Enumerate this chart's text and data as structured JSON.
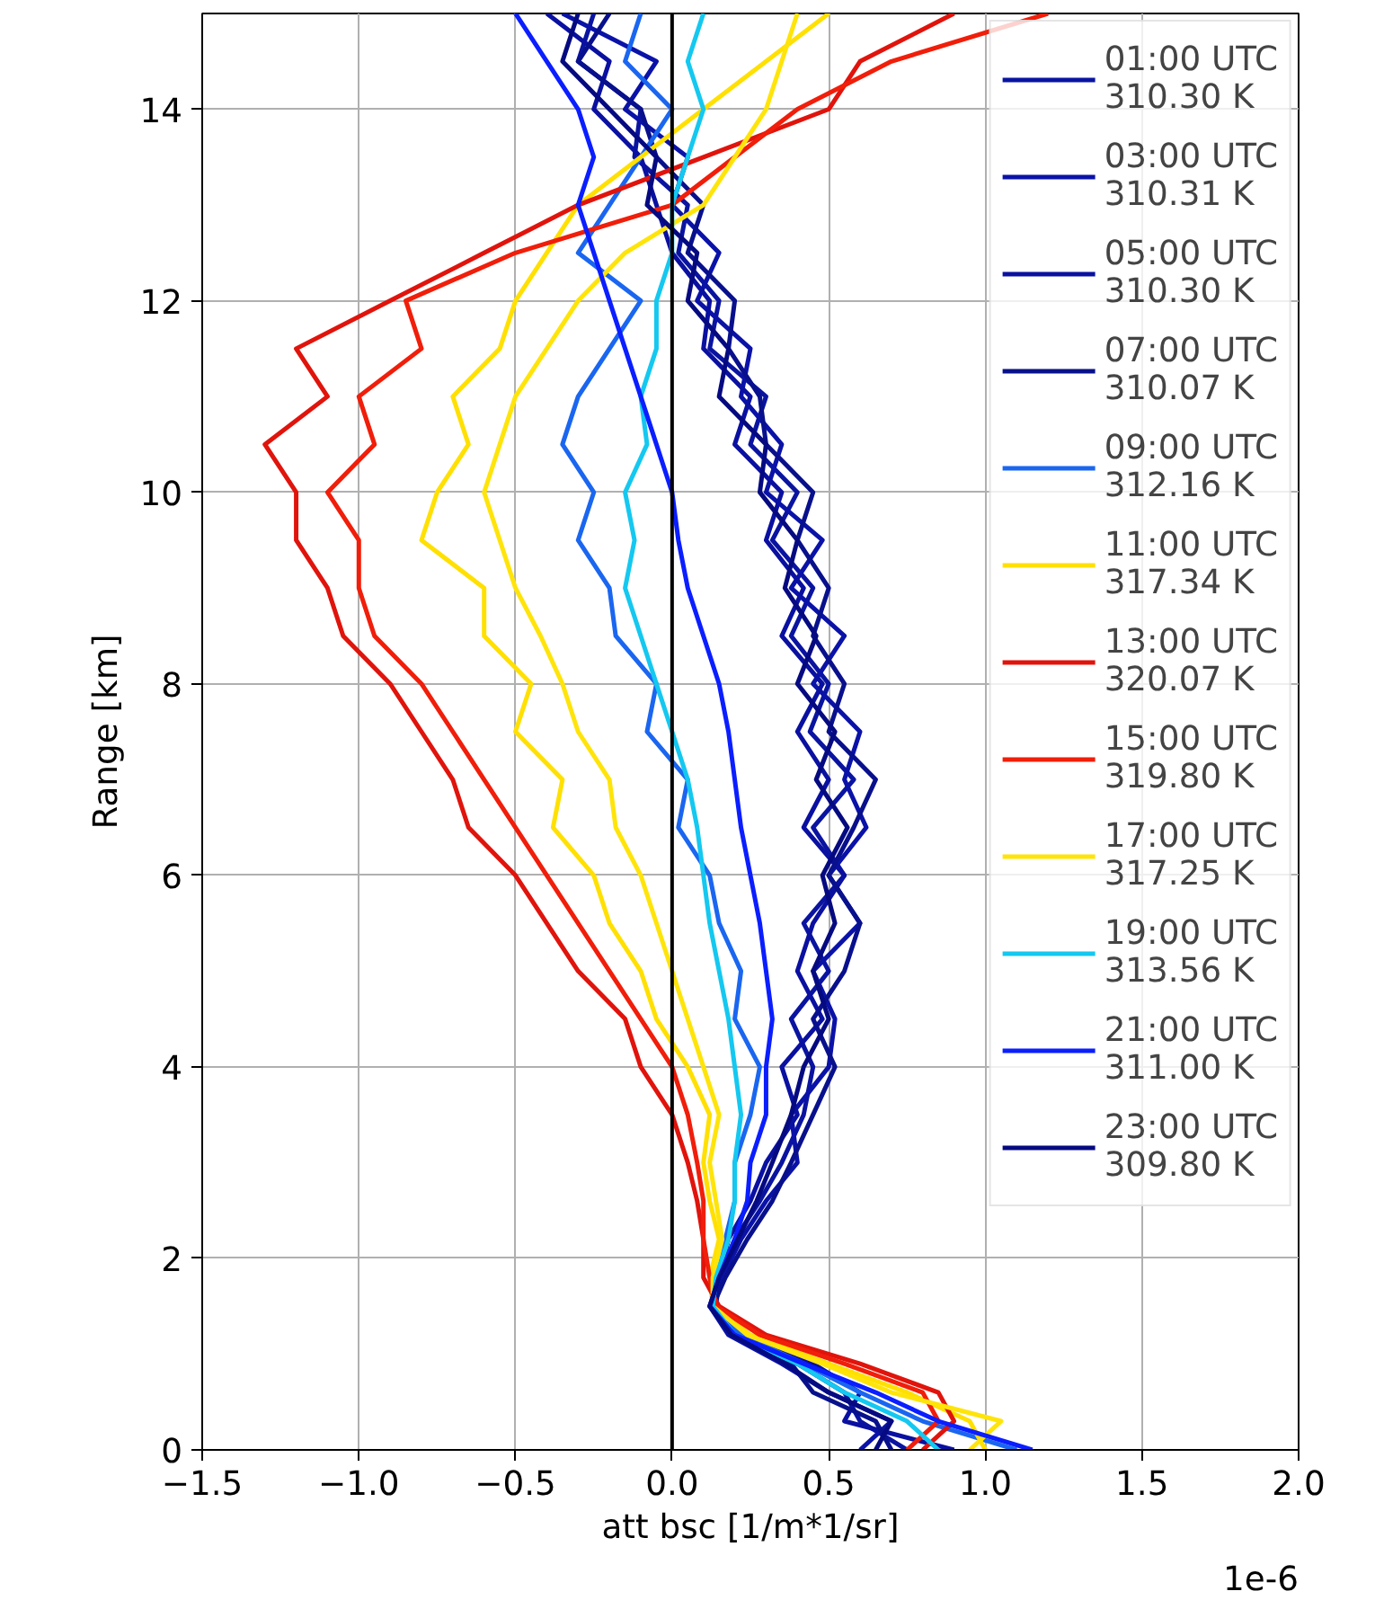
{
  "chart_data": {
    "type": "line",
    "orientation": "horizontal",
    "xlabel": "att bsc [1/m*1/sr]",
    "ylabel": "Range [km]",
    "annotations": [
      "1e-6"
    ],
    "x": [
      0,
      0.3,
      0.6,
      0.9,
      1.2,
      1.5,
      1.8,
      2.2,
      2.6,
      3,
      3.5,
      4,
      4.5,
      5,
      5.5,
      6,
      6.5,
      7,
      7.5,
      8,
      8.5,
      9,
      9.5,
      10,
      10.5,
      11,
      11.5,
      12,
      12.5,
      13,
      13.5,
      14,
      14.5,
      15
    ],
    "xlim": [
      -1.5,
      2.0
    ],
    "xticks": [
      {
        "value": -1.5,
        "label": "−1.5"
      },
      {
        "value": -1.0,
        "label": "−1.0"
      },
      {
        "value": -0.5,
        "label": "−0.5"
      },
      {
        "value": 0.0,
        "label": "0.0"
      },
      {
        "value": 0.5,
        "label": "0.5"
      },
      {
        "value": 1.0,
        "label": "1.0"
      },
      {
        "value": 1.5,
        "label": "1.5"
      },
      {
        "value": 2.0,
        "label": "2.0"
      }
    ],
    "ylim": [
      0,
      15
    ],
    "yticks": [
      0,
      2,
      4,
      6,
      8,
      10,
      12,
      14
    ],
    "grid": true,
    "legend": "top right",
    "marker": "none",
    "line_style": "solid",
    "ref_lines": [
      {
        "axis": "x",
        "value": 0,
        "label": null,
        "color": "#000000"
      }
    ],
    "series": [
      {
        "name": "01:00 UTC\n310.30 K",
        "color": "#0a14a0",
        "values": [
          0.75,
          0.6,
          0.55,
          0.4,
          0.2,
          0.13,
          0.15,
          0.2,
          0.28,
          0.35,
          0.42,
          0.45,
          0.38,
          0.5,
          0.42,
          0.55,
          0.45,
          0.58,
          0.44,
          0.5,
          0.38,
          0.45,
          0.32,
          0.4,
          0.25,
          0.3,
          0.12,
          0.15,
          0.02,
          0.05,
          -0.12,
          -0.1,
          -0.3,
          -0.25
        ]
      },
      {
        "name": "03:00 UTC\n310.31 K",
        "color": "#0a12a8",
        "values": [
          0.6,
          0.7,
          0.5,
          0.35,
          0.18,
          0.12,
          0.16,
          0.22,
          0.3,
          0.4,
          0.38,
          0.5,
          0.52,
          0.45,
          0.6,
          0.5,
          0.62,
          0.55,
          0.6,
          0.45,
          0.55,
          0.38,
          0.48,
          0.3,
          0.35,
          0.22,
          0.25,
          0.08,
          0.15,
          0.0,
          0.05,
          -0.15,
          -0.05,
          -0.35
        ]
      },
      {
        "name": "05:00 UTC\n310.30 K",
        "color": "#0a10a0",
        "values": [
          0.9,
          0.55,
          0.6,
          0.45,
          0.22,
          0.14,
          0.15,
          0.18,
          0.25,
          0.3,
          0.4,
          0.35,
          0.48,
          0.4,
          0.45,
          0.55,
          0.42,
          0.5,
          0.4,
          0.48,
          0.35,
          0.42,
          0.3,
          0.35,
          0.2,
          0.25,
          0.1,
          0.12,
          0.0,
          -0.05,
          -0.1,
          -0.25,
          -0.2,
          -0.4
        ]
      },
      {
        "name": "07:00 UTC\n310.07 K",
        "color": "#08108c",
        "values": [
          0.7,
          0.65,
          0.45,
          0.38,
          0.2,
          0.13,
          0.17,
          0.24,
          0.32,
          0.38,
          0.45,
          0.52,
          0.45,
          0.55,
          0.6,
          0.5,
          0.58,
          0.65,
          0.5,
          0.55,
          0.45,
          0.5,
          0.4,
          0.45,
          0.3,
          0.28,
          0.18,
          0.2,
          0.05,
          0.1,
          -0.05,
          -0.1,
          -0.3,
          -0.2
        ]
      },
      {
        "name": "09:00 UTC\n312.16 K",
        "color": "#1a66f0",
        "values": [
          1.1,
          0.8,
          0.6,
          0.42,
          0.22,
          0.13,
          0.14,
          0.17,
          0.2,
          0.2,
          0.25,
          0.28,
          0.2,
          0.22,
          0.15,
          0.12,
          0.02,
          0.05,
          -0.08,
          -0.05,
          -0.18,
          -0.2,
          -0.3,
          -0.25,
          -0.35,
          -0.3,
          -0.2,
          -0.1,
          -0.3,
          -0.2,
          -0.1,
          0.0,
          -0.15,
          -0.1
        ]
      },
      {
        "name": "11:00 UTC\n317.34 K",
        "color": "#ffe000",
        "values": [
          1.0,
          0.95,
          0.75,
          0.5,
          0.25,
          0.13,
          0.12,
          0.15,
          0.12,
          0.1,
          0.12,
          0.05,
          -0.05,
          -0.1,
          -0.2,
          -0.25,
          -0.38,
          -0.35,
          -0.5,
          -0.45,
          -0.6,
          -0.6,
          -0.8,
          -0.75,
          -0.65,
          -0.7,
          -0.55,
          -0.5,
          -0.4,
          -0.3,
          -0.1,
          0.1,
          0.3,
          0.5
        ]
      },
      {
        "name": "13:00 UTC\n320.07 K",
        "color": "#e0140c",
        "values": [
          0.8,
          0.9,
          0.85,
          0.6,
          0.3,
          0.15,
          0.1,
          0.1,
          0.08,
          0.05,
          0.0,
          -0.1,
          -0.15,
          -0.3,
          -0.4,
          -0.5,
          -0.65,
          -0.7,
          -0.8,
          -0.9,
          -1.05,
          -1.1,
          -1.2,
          -1.2,
          -1.3,
          -1.1,
          -1.2,
          -0.9,
          -0.6,
          -0.3,
          0.1,
          0.5,
          0.6,
          0.9
        ]
      },
      {
        "name": "15:00 UTC\n319.80 K",
        "color": "#f01e0a",
        "values": [
          0.75,
          0.85,
          0.8,
          0.55,
          0.28,
          0.14,
          0.12,
          0.1,
          0.1,
          0.08,
          0.05,
          0.0,
          -0.1,
          -0.2,
          -0.3,
          -0.4,
          -0.5,
          -0.6,
          -0.7,
          -0.8,
          -0.95,
          -1.0,
          -1.0,
          -1.1,
          -0.95,
          -1.0,
          -0.8,
          -0.85,
          -0.5,
          0.0,
          0.2,
          0.4,
          0.7,
          1.2
        ]
      },
      {
        "name": "17:00 UTC\n317.25 K",
        "color": "#ffe40a",
        "values": [
          0.95,
          1.05,
          0.7,
          0.48,
          0.24,
          0.13,
          0.13,
          0.16,
          0.14,
          0.12,
          0.15,
          0.1,
          0.05,
          0.0,
          -0.05,
          -0.1,
          -0.18,
          -0.2,
          -0.3,
          -0.35,
          -0.42,
          -0.5,
          -0.55,
          -0.6,
          -0.55,
          -0.5,
          -0.4,
          -0.3,
          -0.15,
          0.1,
          0.2,
          0.3,
          0.35,
          0.4
        ]
      },
      {
        "name": "19:00 UTC\n313.56 K",
        "color": "#14c8f0",
        "values": [
          0.85,
          0.75,
          0.55,
          0.4,
          0.2,
          0.13,
          0.14,
          0.18,
          0.2,
          0.2,
          0.22,
          0.2,
          0.18,
          0.15,
          0.12,
          0.1,
          0.08,
          0.05,
          0.0,
          -0.05,
          -0.1,
          -0.15,
          -0.12,
          -0.15,
          -0.08,
          -0.1,
          -0.05,
          -0.05,
          0.0,
          0.0,
          0.05,
          0.1,
          0.05,
          0.1
        ]
      },
      {
        "name": "21:00 UTC\n311.00 K",
        "color": "#0a1eff",
        "values": [
          1.15,
          0.85,
          0.65,
          0.42,
          0.2,
          0.12,
          0.15,
          0.2,
          0.24,
          0.25,
          0.3,
          0.3,
          0.32,
          0.3,
          0.28,
          0.25,
          0.22,
          0.2,
          0.18,
          0.15,
          0.1,
          0.05,
          0.02,
          0.0,
          -0.05,
          -0.1,
          -0.15,
          -0.2,
          -0.25,
          -0.3,
          -0.25,
          -0.3,
          -0.4,
          -0.5
        ]
      },
      {
        "name": "23:00 UTC\n309.80 K",
        "color": "#060a80",
        "values": [
          0.65,
          0.7,
          0.5,
          0.36,
          0.19,
          0.12,
          0.15,
          0.21,
          0.27,
          0.32,
          0.38,
          0.42,
          0.5,
          0.45,
          0.52,
          0.48,
          0.56,
          0.46,
          0.52,
          0.4,
          0.46,
          0.36,
          0.4,
          0.28,
          0.3,
          0.15,
          0.18,
          0.05,
          0.08,
          -0.08,
          -0.05,
          -0.2,
          -0.35,
          -0.3
        ]
      }
    ]
  }
}
